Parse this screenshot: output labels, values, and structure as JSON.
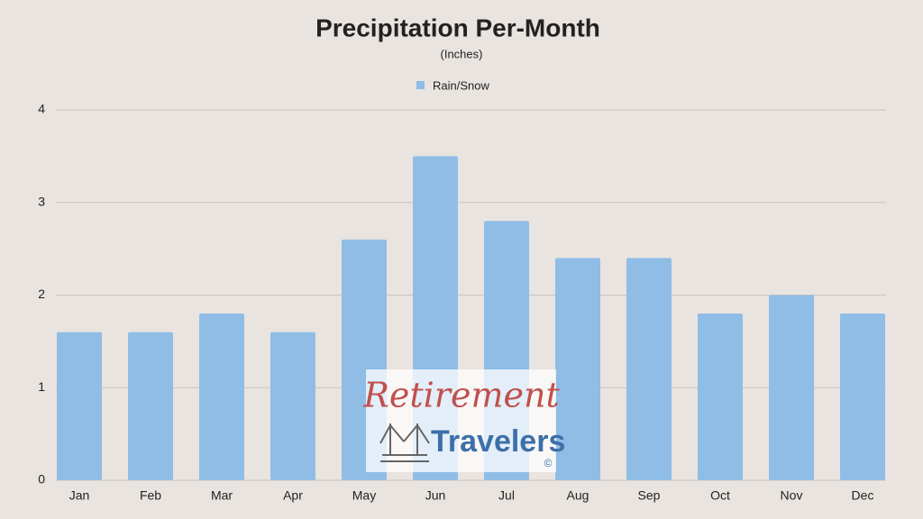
{
  "chart_data": {
    "type": "bar",
    "title": "Precipitation Per-Month",
    "subtitle": "(Inches)",
    "categories": [
      "Jan",
      "Feb",
      "Mar",
      "Apr",
      "May",
      "Jun",
      "Jul",
      "Aug",
      "Sep",
      "Oct",
      "Nov",
      "Dec"
    ],
    "series": [
      {
        "name": "Rain/Snow",
        "color": "#8fbde6",
        "values": [
          1.6,
          1.6,
          1.8,
          1.6,
          2.6,
          3.5,
          2.8,
          2.4,
          2.4,
          1.8,
          2.0,
          1.8
        ]
      }
    ],
    "ylim": [
      0,
      4
    ],
    "yticks": [
      0,
      1,
      2,
      3,
      4
    ],
    "grid": true,
    "legend": "top",
    "watermark": [
      "Retirement",
      "Travelers",
      "©"
    ]
  }
}
